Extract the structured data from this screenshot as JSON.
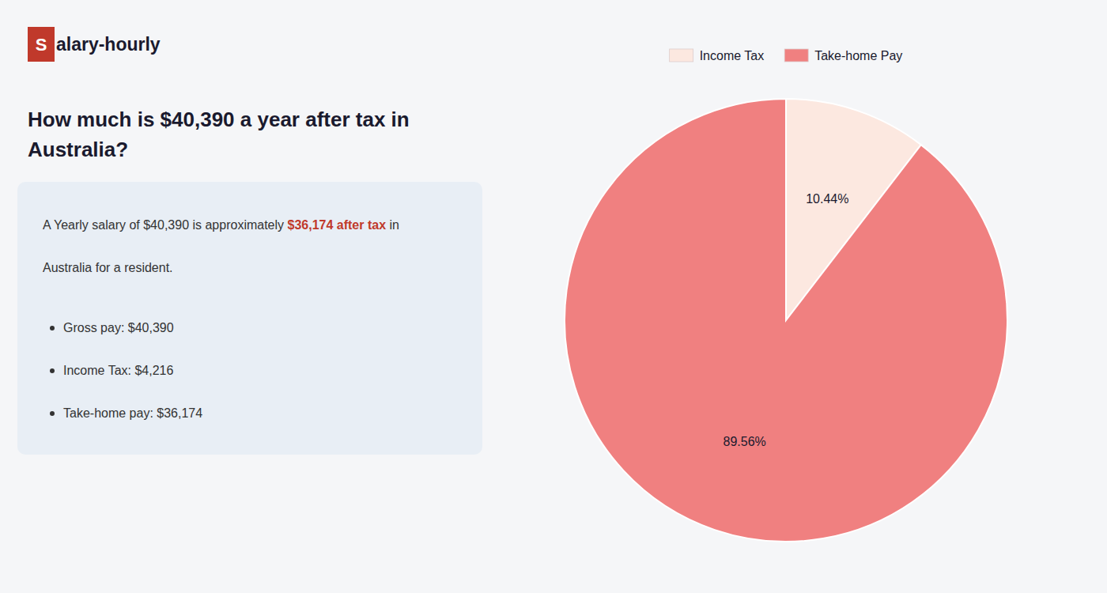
{
  "chart_data": {
    "type": "pie",
    "title": "How much is $40,390 a year after tax in\nAustralia?",
    "annotations": [
      "S",
      "alary-hourly",
      "A Yearly salary of $40,390 is approximately ",
      "$36,174 after tax",
      " in",
      "Australia for a resident.",
      "Gross pay: $40,390",
      "Income Tax: $4,216",
      "Take-home pay: $36,174"
    ],
    "categories": [
      "Income Tax",
      "Take-home Pay"
    ],
    "values": [
      10.44,
      89.56
    ],
    "value_labels": [
      "10.44%",
      "89.56%"
    ],
    "colors": [
      "#fce8e0",
      "#f08080"
    ],
    "data_labels": true,
    "legend": "top"
  }
}
